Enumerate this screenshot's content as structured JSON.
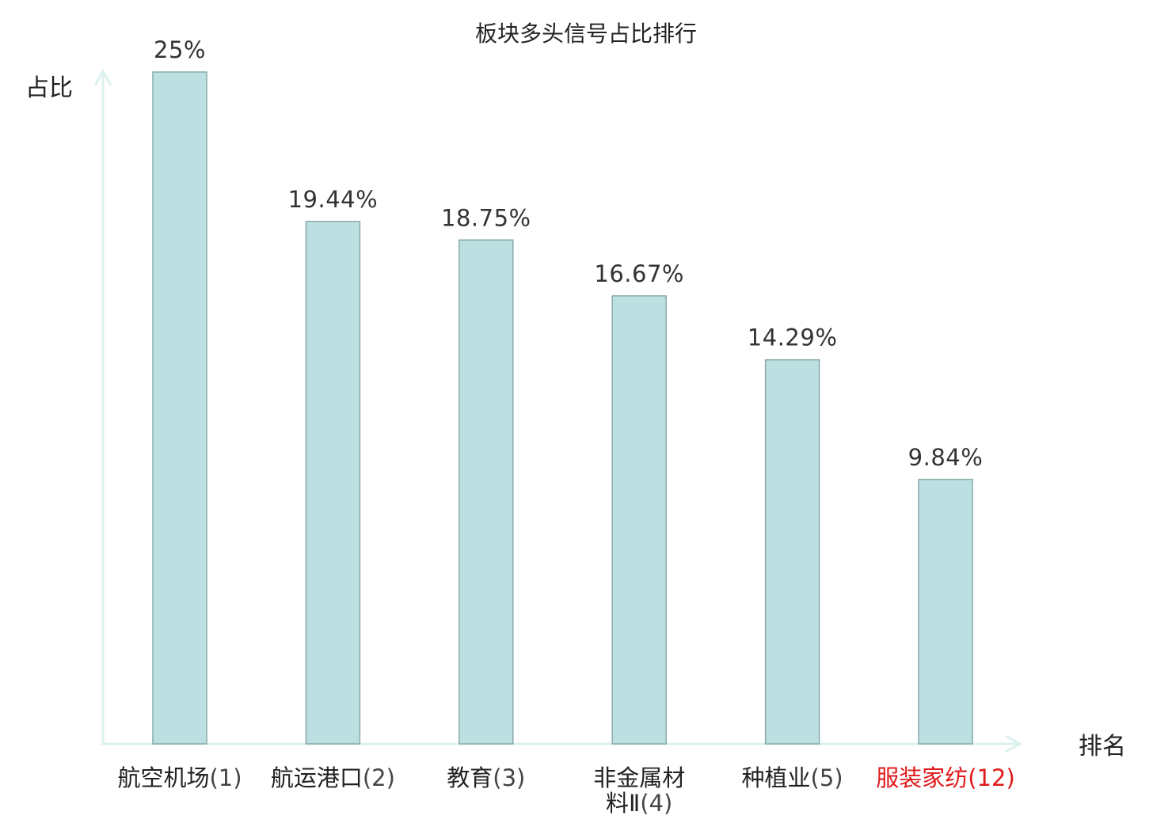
{
  "chart_data": {
    "type": "bar",
    "title": "板块多头信号占比排行",
    "ylabel": "占比",
    "xlabel": "排名",
    "ylim": [
      0,
      25
    ],
    "grid": false,
    "legend": "none",
    "categories": [
      {
        "name": "航空机场",
        "rank": "(1)",
        "highlight": false
      },
      {
        "name": "航运港口",
        "rank": "(2)",
        "highlight": false
      },
      {
        "name": "教育",
        "rank": "(3)",
        "highlight": false
      },
      {
        "name": "非金属材料Ⅱ",
        "rank": "(4)",
        "highlight": false
      },
      {
        "name": "种植业",
        "rank": "(5)",
        "highlight": false
      },
      {
        "name": "服装家纺",
        "rank": "(12)",
        "highlight": true
      }
    ],
    "values": [
      25,
      19.44,
      18.75,
      16.67,
      14.29,
      9.84
    ],
    "value_labels": [
      "25%",
      "19.44%",
      "18.75%",
      "16.67%",
      "14.29%",
      "9.84%"
    ]
  },
  "colors": {
    "bar_fill": "#bce0e2",
    "bar_stroke": "#8aaaaa",
    "axis": "#dcf1ee",
    "text": "#222222",
    "highlight": "#e0191b"
  }
}
